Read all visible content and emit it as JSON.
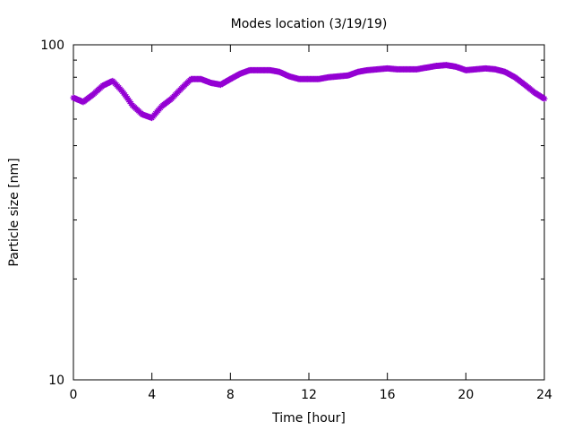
{
  "chart_data": {
    "type": "line",
    "title": "Modes location (3/19/19)",
    "xlabel": "Time [hour]",
    "ylabel": "Particle size [nm]",
    "xlim": [
      0,
      24
    ],
    "ylim": [
      10,
      100
    ],
    "yscale": "log",
    "grid": false,
    "legend": "none",
    "xticks": [
      0,
      4,
      8,
      12,
      16,
      20,
      24
    ],
    "xtick_labels": [
      "0",
      "4",
      "8",
      "12",
      "16",
      "20",
      "24"
    ],
    "yticks": [
      10,
      100
    ],
    "ytick_labels": [
      "10",
      "100"
    ],
    "series": [
      {
        "color": "#9400d3",
        "marker": "star",
        "x": [
          0.0,
          0.5,
          1.0,
          1.5,
          2.0,
          2.5,
          3.0,
          3.5,
          4.0,
          4.5,
          5.0,
          5.5,
          6.0,
          6.5,
          7.0,
          7.5,
          8.0,
          8.5,
          9.0,
          9.5,
          10.0,
          10.5,
          11.0,
          11.5,
          12.0,
          12.5,
          13.0,
          13.5,
          14.0,
          14.5,
          15.0,
          15.5,
          16.0,
          16.5,
          17.0,
          17.5,
          18.0,
          18.5,
          19.0,
          19.5,
          20.0,
          20.5,
          21.0,
          21.5,
          22.0,
          22.5,
          23.0,
          23.5,
          24.0
        ],
        "y": [
          69.5,
          67.5,
          71,
          75.5,
          78,
          72.5,
          66,
          62,
          60.5,
          65.5,
          69,
          74,
          79,
          79,
          77,
          76,
          79,
          82,
          84,
          84,
          84,
          83,
          80.5,
          79,
          79,
          79,
          80,
          80.5,
          81,
          83,
          84,
          84.5,
          85,
          84.5,
          84.5,
          84.5,
          85.5,
          86.5,
          87,
          86,
          84,
          84.5,
          85,
          84.5,
          83,
          80,
          76,
          72,
          69
        ]
      }
    ]
  }
}
